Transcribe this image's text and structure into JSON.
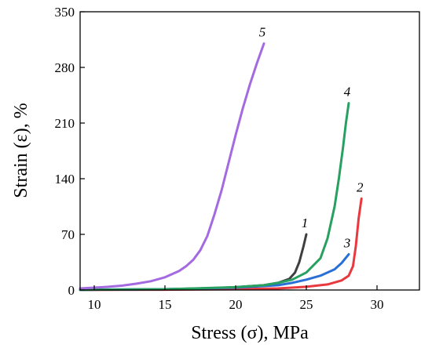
{
  "chart_data": {
    "type": "line",
    "title": "",
    "xlabel": "Stress (σ), MPa",
    "ylabel": "Strain (ε), %",
    "xlim": [
      9,
      33
    ],
    "ylim": [
      0,
      350
    ],
    "xticks": [
      10,
      15,
      20,
      25,
      30
    ],
    "yticks": [
      0,
      70,
      140,
      210,
      280,
      350
    ],
    "grid": false,
    "legend": "none",
    "series": [
      {
        "name": "1",
        "color": "#3f3f3f",
        "x": [
          9,
          12,
          15,
          18,
          20,
          22,
          23,
          23.8,
          24.2,
          24.5,
          24.8,
          25
        ],
        "y": [
          0.3,
          0.5,
          1,
          2,
          3.5,
          6,
          9,
          14,
          22,
          35,
          55,
          70
        ]
      },
      {
        "name": "2",
        "color": "#e8393f",
        "x": [
          9,
          15,
          20,
          23,
          25,
          26.5,
          27.5,
          28,
          28.3,
          28.5,
          28.7,
          28.9
        ],
        "y": [
          0.2,
          0.4,
          1,
          2,
          4,
          7,
          12,
          18,
          30,
          55,
          90,
          115
        ]
      },
      {
        "name": "3",
        "color": "#2a6fd6",
        "x": [
          9,
          15,
          20,
          23,
          24,
          25,
          26,
          27,
          27.5,
          28
        ],
        "y": [
          0.3,
          1,
          3,
          6,
          9,
          13,
          18,
          26,
          34,
          45
        ]
      },
      {
        "name": "4",
        "color": "#27a060",
        "x": [
          9,
          15,
          20,
          22,
          23,
          24,
          25,
          26,
          26.5,
          27,
          27.3,
          27.6,
          27.8,
          28
        ],
        "y": [
          0.3,
          1,
          3.5,
          6,
          9,
          13,
          22,
          40,
          65,
          105,
          140,
          180,
          210,
          235
        ]
      },
      {
        "name": "5",
        "color": "#a46ae0",
        "x": [
          9,
          10,
          11,
          12,
          13,
          14,
          15,
          16,
          16.5,
          17,
          17.5,
          18,
          18.5,
          19,
          19.5,
          20,
          20.5,
          21,
          21.5,
          22
        ],
        "y": [
          2,
          3,
          4,
          5.5,
          8,
          11,
          16,
          24,
          30,
          38,
          50,
          68,
          95,
          125,
          160,
          195,
          228,
          258,
          285,
          310
        ]
      }
    ]
  }
}
